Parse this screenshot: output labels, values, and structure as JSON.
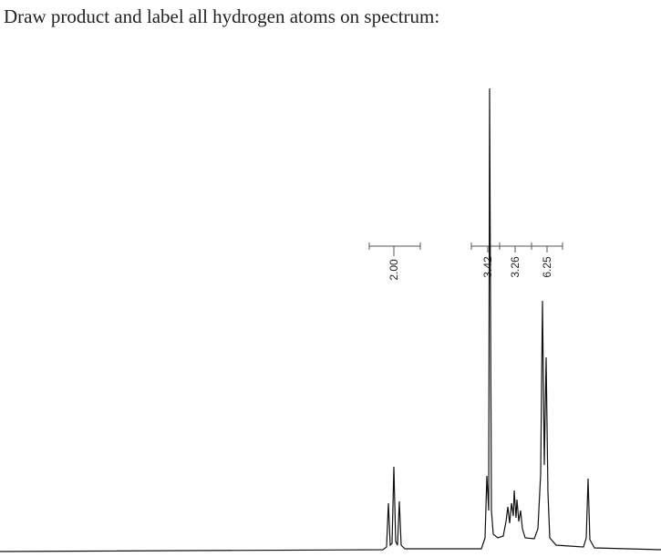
{
  "header": {
    "title": "Draw product and label all hydrogen atoms on spectrum:"
  },
  "integrations": [
    "2.00",
    "3.42",
    "3.26",
    "6.25"
  ]
}
